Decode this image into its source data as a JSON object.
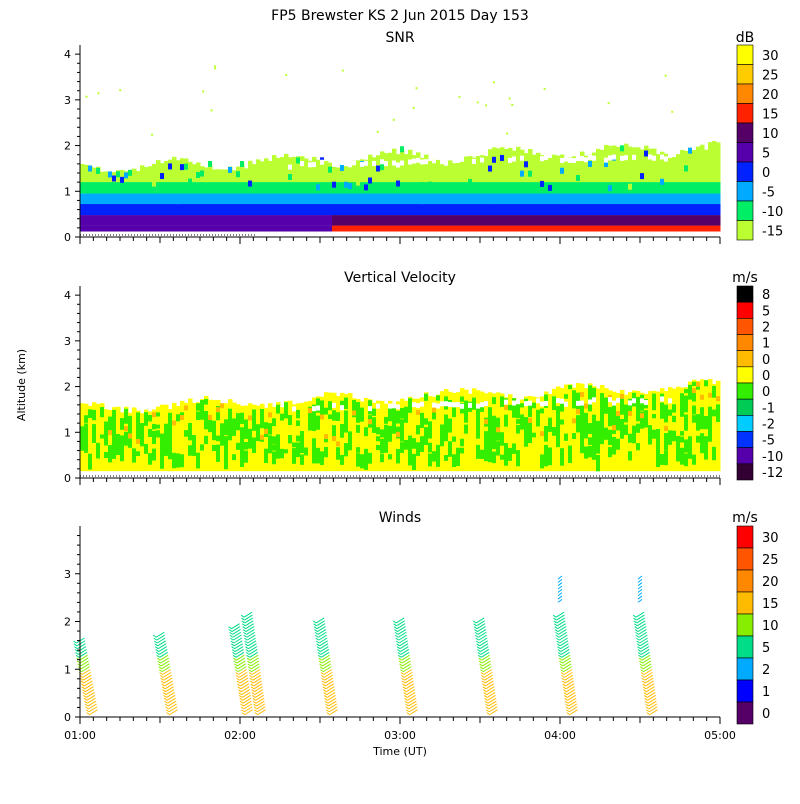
{
  "figure_title": "FP5 Brewster KS    2 Jun 2015 Day 153",
  "shared_ylabel": "Altitude (km)",
  "time_axis": {
    "label": "Time (UT)",
    "tick_labels": [
      "01:00",
      "02:00",
      "03:00",
      "04:00",
      "05:00"
    ],
    "range_hours": [
      1,
      5
    ]
  },
  "chart_data": [
    {
      "type": "heatmap",
      "title": "SNR",
      "ylim": [
        0,
        4.2
      ],
      "yticks": [
        "0",
        "1",
        "2",
        "3",
        "4"
      ],
      "colorbar": {
        "unit": "dB",
        "labels": [
          "30",
          "25",
          "20",
          "15",
          "10",
          "5",
          "0",
          "-5",
          "-10",
          "-15"
        ],
        "colors": [
          "#ffff00",
          "#ffcc00",
          "#ff8800",
          "#ff2200",
          "#550066",
          "#5500aa",
          "#0022ff",
          "#00aaff",
          "#00ee66",
          "#bbff33"
        ]
      },
      "description_layers": [
        {
          "altitude_km": [
            0.1,
            0.35
          ],
          "level": "15-20",
          "time_range": [
            2.6,
            5.0
          ]
        },
        {
          "altitude_km": [
            0.15,
            0.5
          ],
          "level": "5-10",
          "time_range": [
            1.0,
            5.0
          ]
        },
        {
          "altitude_km": [
            0.5,
            0.8
          ],
          "level": "0",
          "time_range": [
            1.0,
            5.0
          ]
        },
        {
          "altitude_km": [
            0.8,
            1.1
          ],
          "level": "-5",
          "time_range": [
            1.0,
            5.0
          ]
        },
        {
          "altitude_km": [
            1.1,
            1.5
          ],
          "level": "-10",
          "time_range": [
            1.0,
            5.0
          ]
        },
        {
          "altitude_km": [
            1.5,
            2.0
          ],
          "level": "-15",
          "time_range": [
            1.0,
            5.0
          ]
        }
      ]
    },
    {
      "type": "heatmap",
      "title": "Vertical Velocity",
      "ylim": [
        0,
        4.2
      ],
      "yticks": [
        "0",
        "1",
        "2",
        "3",
        "4"
      ],
      "colorbar": {
        "unit": "m/s",
        "labels": [
          "8",
          "5",
          "2",
          "1",
          "0",
          "0",
          "0",
          "-1",
          "-2",
          "-5",
          "-10",
          "-12"
        ],
        "colors": [
          "#000000",
          "#ff0000",
          "#ff5500",
          "#ff8800",
          "#ffbb00",
          "#ffff00",
          "#33ee00",
          "#00cc55",
          "#00ccff",
          "#0033ff",
          "#5500aa",
          "#330033"
        ]
      },
      "dominant_level": "0 (yellow)",
      "secondary_level": "0 (green)"
    },
    {
      "type": "scatter",
      "title": "Winds",
      "ylim": [
        0,
        4
      ],
      "yticks": [
        "0",
        "1",
        "2",
        "3"
      ],
      "colorbar": {
        "unit": "m/s",
        "labels": [
          "30",
          "25",
          "20",
          "15",
          "10",
          "5",
          "2",
          "1",
          "0"
        ],
        "colors": [
          "#ff0000",
          "#ff5500",
          "#ff8800",
          "#ffbb00",
          "#88ee00",
          "#00dd88",
          "#00aaff",
          "#0000ff",
          "#550066"
        ]
      },
      "profile_times_hours": [
        1.0,
        1.5,
        1.97,
        2.05,
        2.5,
        3.0,
        3.5,
        4.0,
        4.5
      ],
      "profile_top_km": [
        1.6,
        1.7,
        1.9,
        2.1,
        2.0,
        2.0,
        2.0,
        2.1,
        2.1
      ],
      "upper_barbs": [
        {
          "time_hours": 4.0,
          "altitude_km": [
            2.4,
            2.9
          ]
        },
        {
          "time_hours": 4.5,
          "altitude_km": [
            2.4,
            2.9
          ]
        }
      ]
    }
  ]
}
